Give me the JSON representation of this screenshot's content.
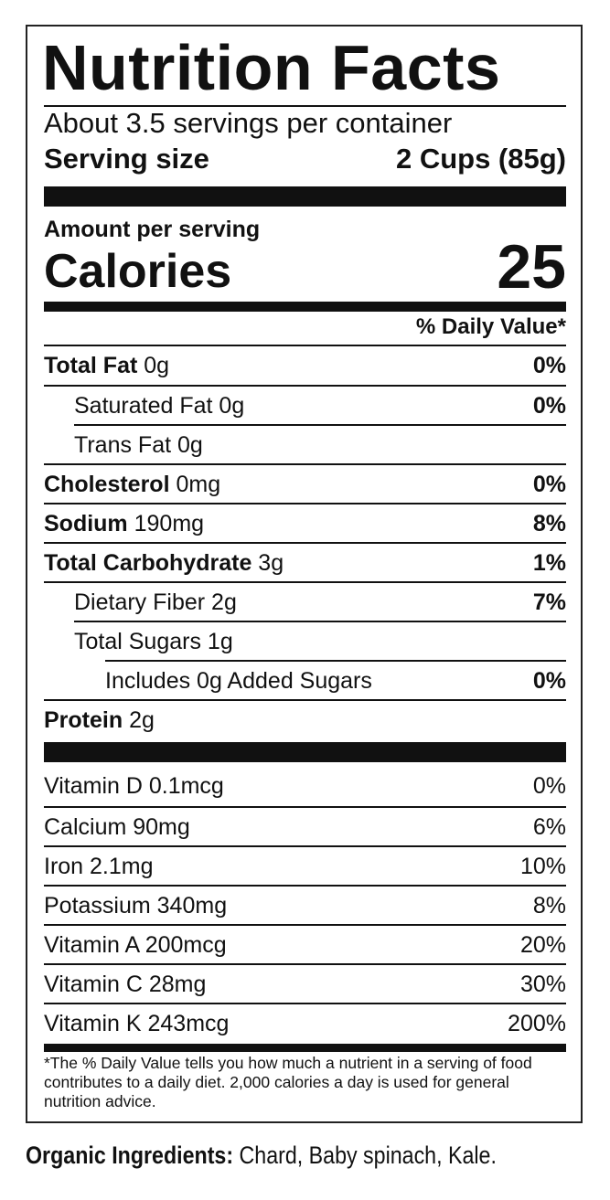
{
  "label": {
    "title": "Nutrition Facts",
    "servings_per_container": "About 3.5 servings per container",
    "serving_size_label": "Serving size",
    "serving_size_value": "2 Cups (85g)",
    "amount_per_serving": "Amount per serving",
    "calories_label": "Calories",
    "calories_value": "25",
    "daily_value_header": "% Daily Value*",
    "nutrients": [
      {
        "bold": "Total Fat",
        "amount": " 0g",
        "dv": "0%"
      },
      {
        "bold": "",
        "amount": "Saturated Fat 0g",
        "dv": "0%"
      },
      {
        "bold": "",
        "amount": "Trans Fat 0g",
        "dv": ""
      },
      {
        "bold": "Cholesterol",
        "amount": " 0mg",
        "dv": "0%"
      },
      {
        "bold": "Sodium",
        "amount": " 190mg",
        "dv": "8%"
      },
      {
        "bold": "Total Carbohydrate",
        "amount": " 3g",
        "dv": "1%"
      },
      {
        "bold": "",
        "amount": "Dietary Fiber 2g",
        "dv": "7%"
      },
      {
        "bold": "",
        "amount": "Total Sugars 1g",
        "dv": ""
      },
      {
        "bold": "",
        "amount": "Includes 0g Added Sugars",
        "dv": "0%"
      },
      {
        "bold": "Protein",
        "amount": " 2g",
        "dv": ""
      }
    ],
    "vitamins": [
      {
        "name": "Vitamin D 0.1mcg",
        "dv": "0%"
      },
      {
        "name": "Calcium 90mg",
        "dv": "6%"
      },
      {
        "name": "Iron 2.1mg",
        "dv": "10%"
      },
      {
        "name": "Potassium 340mg",
        "dv": "8%"
      },
      {
        "name": "Vitamin A 200mcg",
        "dv": "20%"
      },
      {
        "name": "Vitamin C 28mg",
        "dv": "30%"
      },
      {
        "name": "Vitamin K 243mcg",
        "dv": "200%"
      }
    ],
    "footnote": "*The % Daily Value tells you how much a nutrient in a serving of food contributes to a daily diet. 2,000 calories a day is used for general nutrition advice."
  },
  "ingredients": {
    "label": "Organic Ingredients:",
    "text": " Chard, Baby spinach, Kale."
  }
}
